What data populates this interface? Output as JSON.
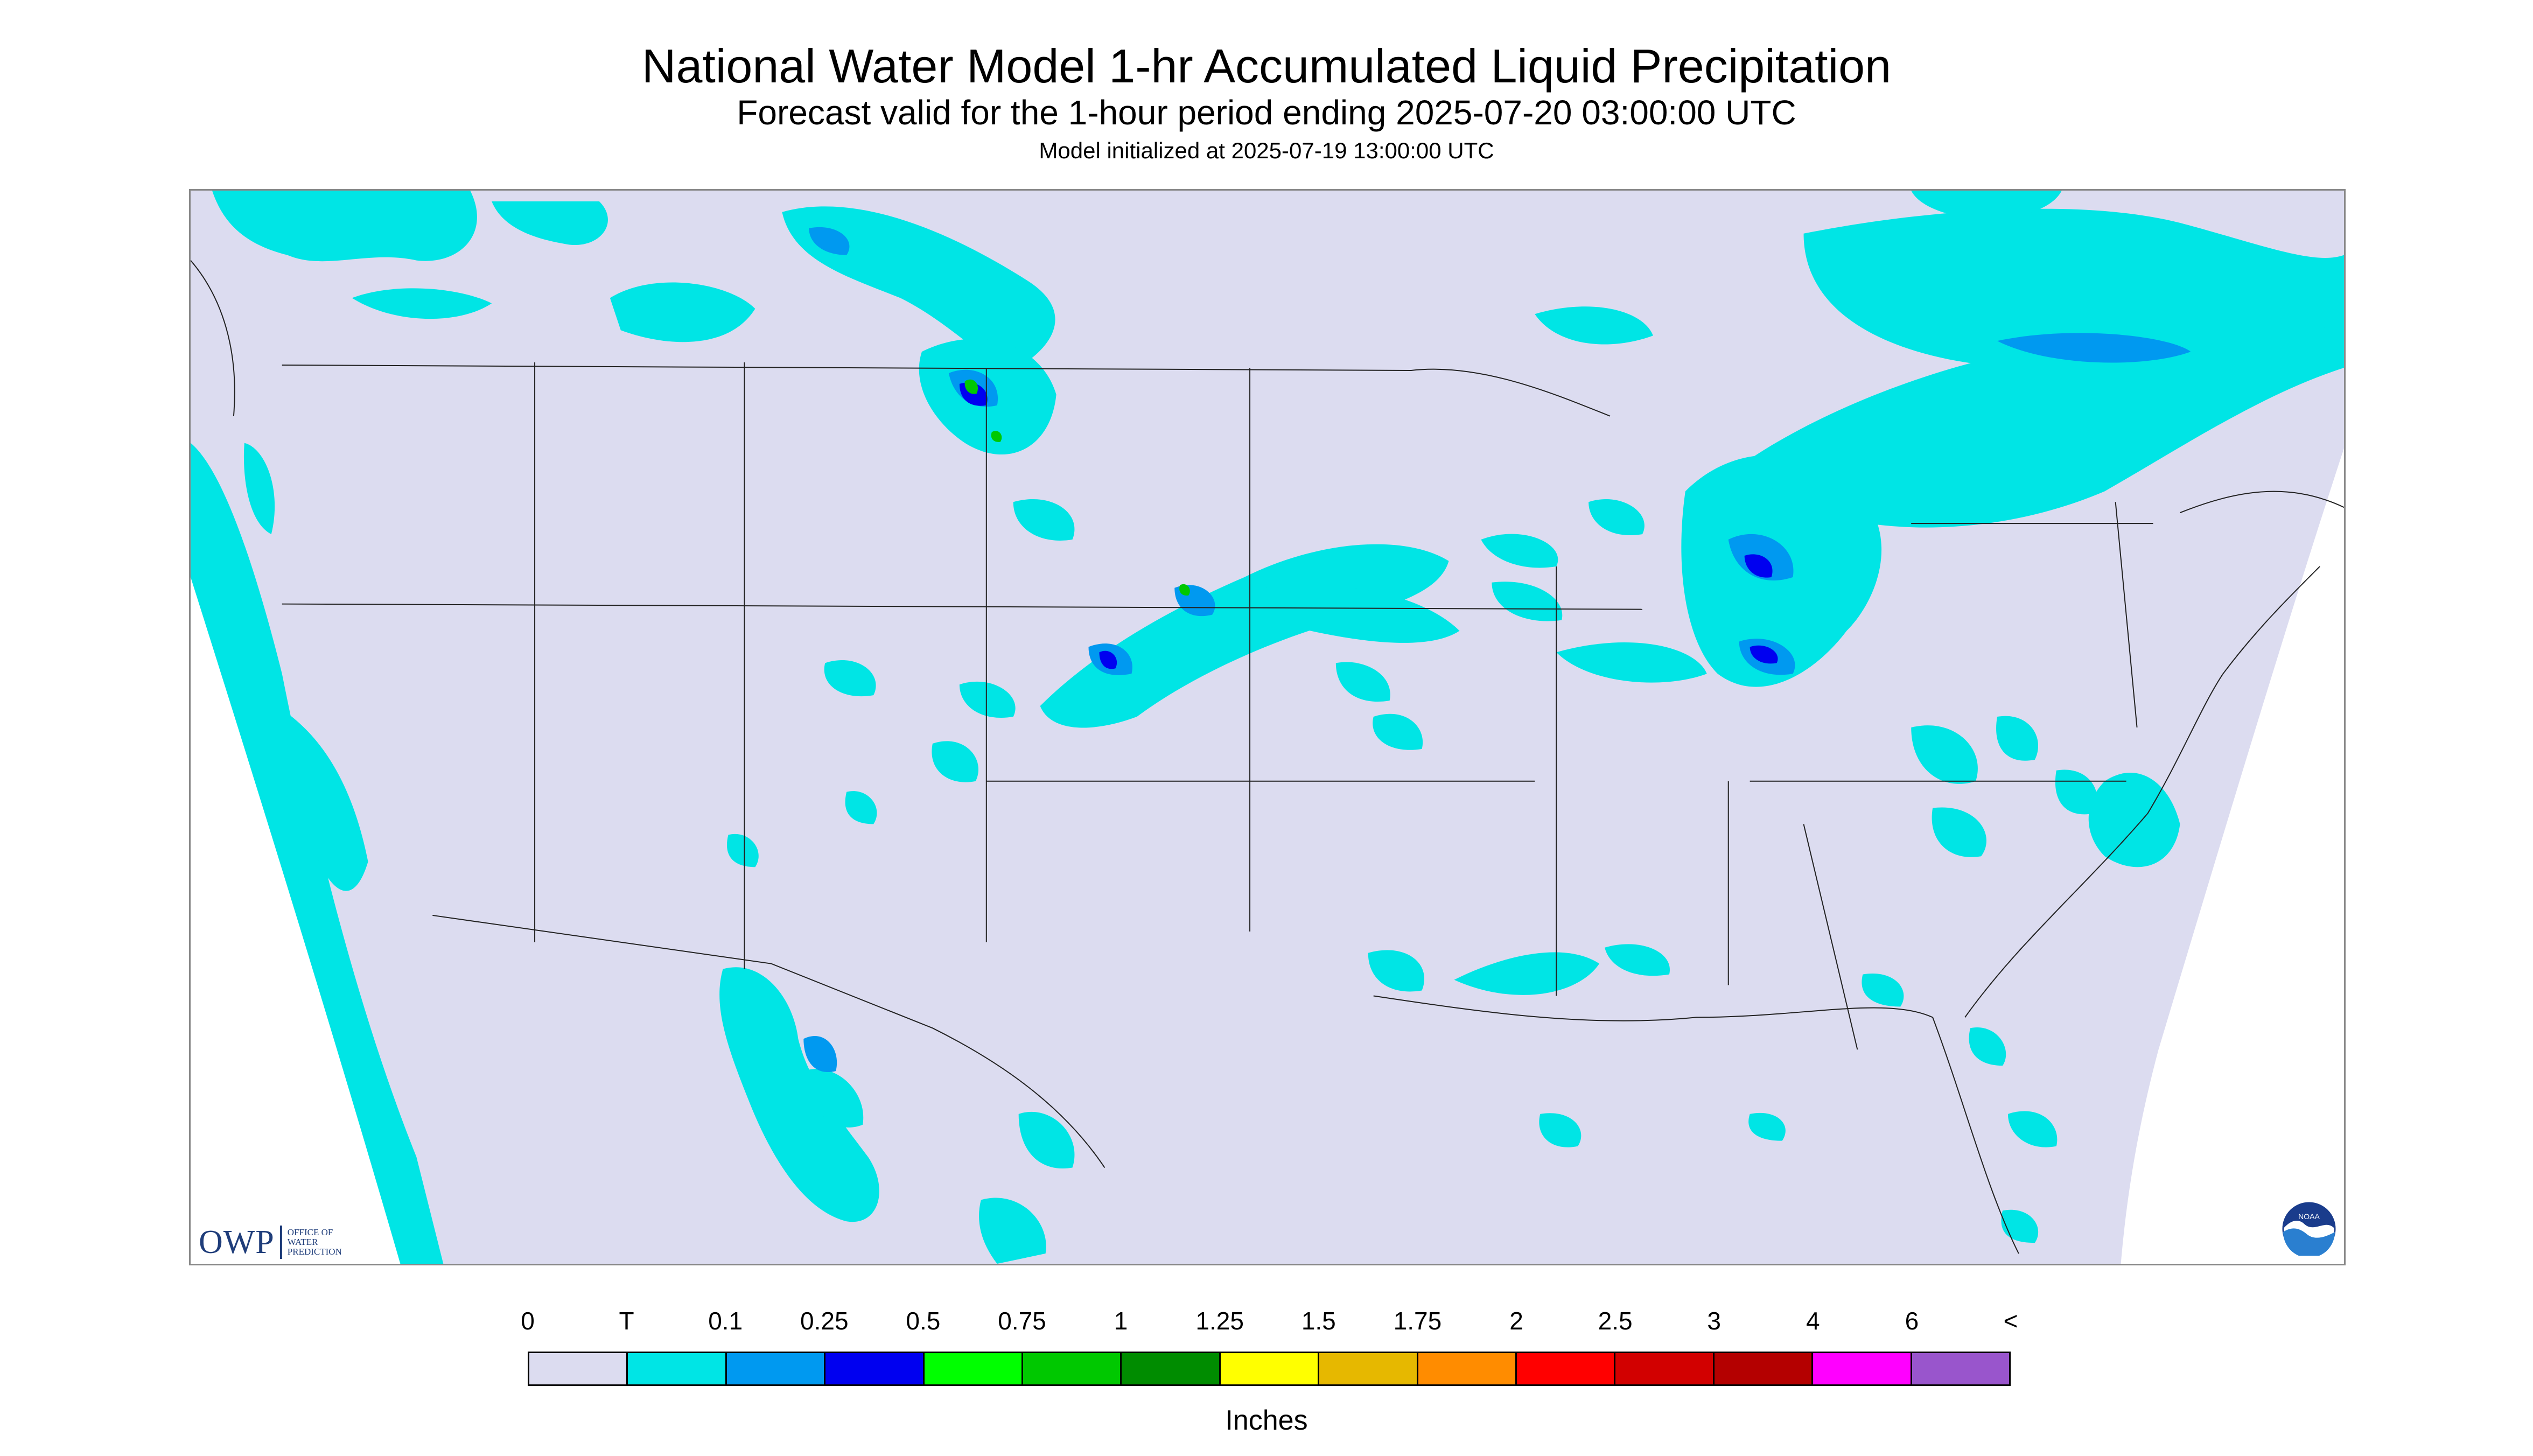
{
  "header": {
    "title": "National Water Model 1-hr Accumulated Liquid Precipitation",
    "subtitle": "Forecast valid for the 1-hour period ending 2025-07-20 03:00:00 UTC",
    "init": "Model initialized at 2025-07-19 13:00:00 UTC"
  },
  "logos": {
    "owp_abbrev": "OWP",
    "owp_line1": "OFFICE OF",
    "owp_line2": "WATER",
    "owp_line3": "PREDICTION",
    "noaa_text": "NOAA"
  },
  "legend": {
    "labels": [
      "0",
      "T",
      "0.1",
      "0.25",
      "0.5",
      "0.75",
      "1",
      "1.25",
      "1.5",
      "1.75",
      "2",
      "2.5",
      "3",
      "4",
      "6",
      "<"
    ],
    "colors": [
      "#dcdcf0",
      "#00e5e5",
      "#0099f0",
      "#0000f0",
      "#00ff00",
      "#00c800",
      "#008c00",
      "#ffff00",
      "#e6b800",
      "#ff8c00",
      "#ff0000",
      "#d20000",
      "#b40000",
      "#ff00ff",
      "#9955cc"
    ],
    "units": "Inches"
  },
  "map_colors": {
    "background": "#dcdcf0",
    "outside": "#ffffff",
    "trace": "#00e5e5",
    "light": "#0099f0",
    "moderate": "#0000f0",
    "heavy": "#00c800",
    "border": "#222222"
  }
}
